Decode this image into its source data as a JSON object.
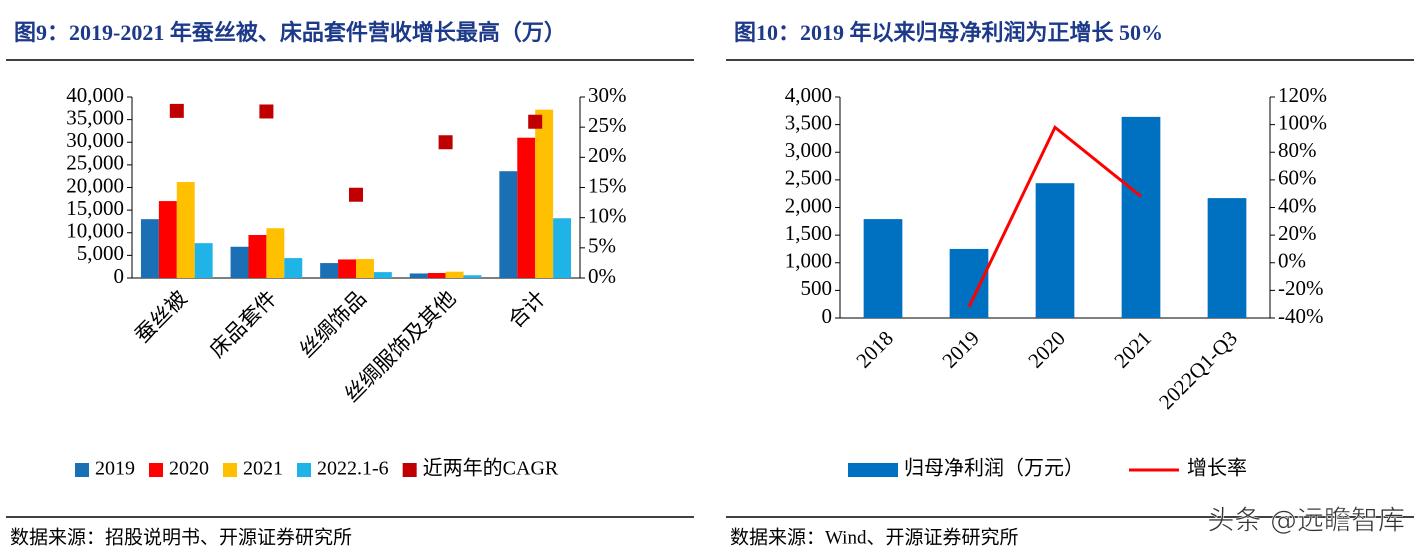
{
  "chart_data": [
    {
      "type": "bar",
      "title": "图9：2019-2021 年蚕丝被、床品套件营收增长最高（万）",
      "source": "数据来源：招股说明书、开源证券研究所",
      "categories": [
        "蚕丝被",
        "床品套件",
        "丝绸饰品",
        "丝绸服饰及其他",
        "合计"
      ],
      "series": [
        {
          "name": "2019",
          "color": "#1a6fb5",
          "values": [
            13000,
            6900,
            3300,
            1000,
            23600
          ]
        },
        {
          "name": "2020",
          "color": "#ff0000",
          "values": [
            17000,
            9500,
            4100,
            1100,
            31000
          ]
        },
        {
          "name": "2021",
          "color": "#ffc000",
          "values": [
            21200,
            11000,
            4200,
            1400,
            37200
          ]
        },
        {
          "name": "2022.1-6",
          "color": "#1fb3e8",
          "values": [
            7700,
            4400,
            1300,
            600,
            13200
          ]
        },
        {
          "name": "近两年的CAGR",
          "color": "#c00000",
          "type": "scatter",
          "axis": "y2",
          "values": [
            27.7,
            27.6,
            13.8,
            22.5,
            25.9
          ]
        }
      ],
      "ylim": [
        0,
        40000
      ],
      "yticks": [
        0,
        {
          "value": 5000,
          "label": "5,000"
        },
        {
          "value": 10000,
          "label": "10,000"
        },
        {
          "value": 15000,
          "label": "15,000"
        },
        {
          "value": 20000,
          "label": "20,000"
        },
        {
          "value": 25000,
          "label": "25,000"
        },
        {
          "value": 30000,
          "label": "30,000"
        },
        {
          "value": 35000,
          "label": "35,000"
        },
        {
          "value": 40000,
          "label": "40,000"
        }
      ],
      "y2lim": [
        0,
        30
      ],
      "y2ticks": [
        {
          "value": 0,
          "label": "0%"
        },
        {
          "value": 5,
          "label": "5%"
        },
        {
          "value": 10,
          "label": "10%"
        },
        {
          "value": 15,
          "label": "15%"
        },
        {
          "value": 20,
          "label": "20%"
        },
        {
          "value": 25,
          "label": "25%"
        },
        {
          "value": 30,
          "label": "30%"
        }
      ],
      "legend": "bottom"
    },
    {
      "type": "bar",
      "title": "图10：2019 年以来归母净利润为正增长 50%",
      "source": "数据来源：Wind、开源证券研究所",
      "watermark": "头条 @远瞻智库",
      "categories": [
        "2018",
        "2019",
        "2020",
        "2021",
        "2022Q1-Q3"
      ],
      "series": [
        {
          "name": "归母净利润（万元）",
          "color": "#0070c0",
          "values": [
            1790,
            1250,
            2440,
            3640,
            2170
          ]
        },
        {
          "name": "增长率",
          "color": "#ff0000",
          "type": "line",
          "axis": "y2",
          "values": [
            null,
            -32,
            98,
            48,
            null
          ]
        }
      ],
      "ylim": [
        0,
        4000
      ],
      "yticks": [
        0,
        500,
        {
          "value": 1000,
          "label": "1,000"
        },
        {
          "value": 1500,
          "label": "1,500"
        },
        {
          "value": 2000,
          "label": "2,000"
        },
        {
          "value": 2500,
          "label": "2,500"
        },
        {
          "value": 3000,
          "label": "3,000"
        },
        {
          "value": 3500,
          "label": "3,500"
        },
        {
          "value": 4000,
          "label": "4,000"
        }
      ],
      "y2lim": [
        -40,
        120
      ],
      "y2ticks": [
        {
          "value": -40,
          "label": "-40%"
        },
        {
          "value": -20,
          "label": "-20%"
        },
        {
          "value": 0,
          "label": "0%"
        },
        {
          "value": 20,
          "label": "20%"
        },
        {
          "value": 40,
          "label": "40%"
        },
        {
          "value": 60,
          "label": "60%"
        },
        {
          "value": 80,
          "label": "80%"
        },
        {
          "value": 100,
          "label": "100%"
        },
        {
          "value": 120,
          "label": "120%"
        }
      ],
      "legend": "bottom"
    }
  ]
}
